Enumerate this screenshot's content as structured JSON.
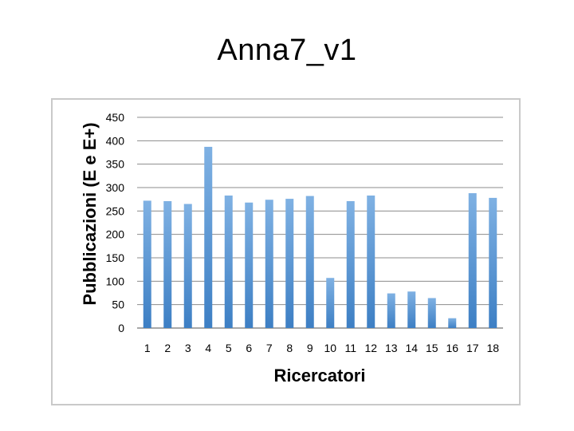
{
  "slide": {
    "title": "Anna7_v1"
  },
  "chart_data": {
    "type": "bar",
    "title": "",
    "xlabel": "Ricercatori",
    "ylabel": "Pubblicazioni (E e E+)",
    "categories": [
      "1",
      "2",
      "3",
      "4",
      "5",
      "6",
      "7",
      "8",
      "9",
      "10",
      "11",
      "12",
      "13",
      "14",
      "15",
      "16",
      "17",
      "18"
    ],
    "values": [
      272,
      271,
      265,
      387,
      283,
      268,
      274,
      276,
      282,
      107,
      271,
      283,
      74,
      78,
      64,
      21,
      288,
      278
    ],
    "ylim": [
      0,
      450
    ],
    "yticks": [
      0,
      50,
      100,
      150,
      200,
      250,
      300,
      350,
      400,
      450
    ],
    "grid": true,
    "legend": "none",
    "colors": {
      "bar_top": "#7fb1e3",
      "bar_bottom": "#3d7fc4",
      "grid": "#8c8c8c"
    }
  }
}
